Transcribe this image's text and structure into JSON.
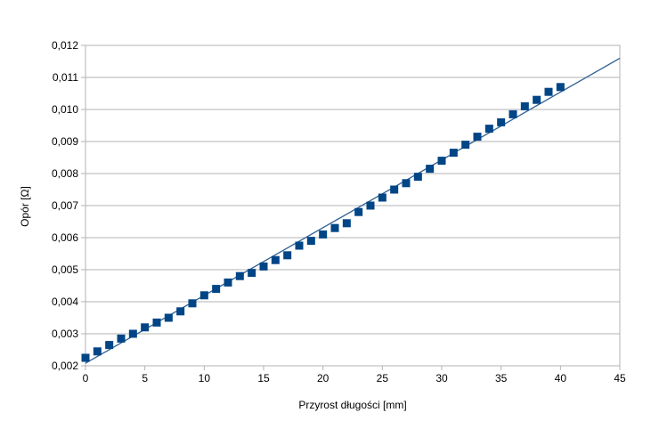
{
  "page": {
    "background_color": "#ffffff",
    "text_color": "#000000"
  },
  "chart_data": {
    "type": "scatter",
    "title": "",
    "xlabel": "Przyrost długości [mm]",
    "ylabel": "Opór [Ω]",
    "xlim": [
      0,
      45
    ],
    "ylim": [
      0.002,
      0.012
    ],
    "grid": "horizontal",
    "legend": "none",
    "x_ticks": [
      0,
      5,
      10,
      15,
      20,
      25,
      30,
      35,
      40,
      45
    ],
    "x_tick_labels": [
      "0",
      "5",
      "10",
      "15",
      "20",
      "25",
      "30",
      "35",
      "40",
      "45"
    ],
    "y_ticks": [
      0.002,
      0.003,
      0.004,
      0.005,
      0.006,
      0.007,
      0.008,
      0.009,
      0.01,
      0.011,
      0.012
    ],
    "y_tick_labels": [
      "0,002",
      "0,003",
      "0,004",
      "0,005",
      "0,006",
      "0,007",
      "0,008",
      "0,009",
      "0,010",
      "0,011",
      "0,012"
    ],
    "colors": {
      "point": "#004586",
      "trend_line": "#2e5f94",
      "gridline": "#b3b3b3",
      "axis": "#b3b3b3",
      "tick_text": "#000000"
    },
    "series": [
      {
        "name": "measurements",
        "kind": "points",
        "marker": "square",
        "x": [
          0,
          1,
          2,
          3,
          4,
          5,
          6,
          7,
          8,
          9,
          10,
          11,
          12,
          13,
          14,
          15,
          16,
          17,
          18,
          19,
          20,
          21,
          22,
          23,
          24,
          25,
          26,
          27,
          28,
          29,
          30,
          31,
          32,
          33,
          34,
          35,
          36,
          37,
          38,
          39,
          40
        ],
        "y": [
          0.00225,
          0.00245,
          0.00265,
          0.00285,
          0.003,
          0.0032,
          0.00335,
          0.0035,
          0.0037,
          0.00395,
          0.0042,
          0.0044,
          0.0046,
          0.0048,
          0.0049,
          0.0051,
          0.0053,
          0.00545,
          0.00575,
          0.0059,
          0.0061,
          0.0063,
          0.00645,
          0.0068,
          0.007,
          0.00725,
          0.0075,
          0.0077,
          0.0079,
          0.00815,
          0.0084,
          0.00865,
          0.0089,
          0.00915,
          0.0094,
          0.0096,
          0.00985,
          0.0101,
          0.0103,
          0.01055,
          0.0107
        ]
      },
      {
        "name": "trend-line",
        "kind": "line",
        "x": [
          0,
          45
        ],
        "y": [
          0.00208,
          0.0116
        ]
      }
    ]
  }
}
